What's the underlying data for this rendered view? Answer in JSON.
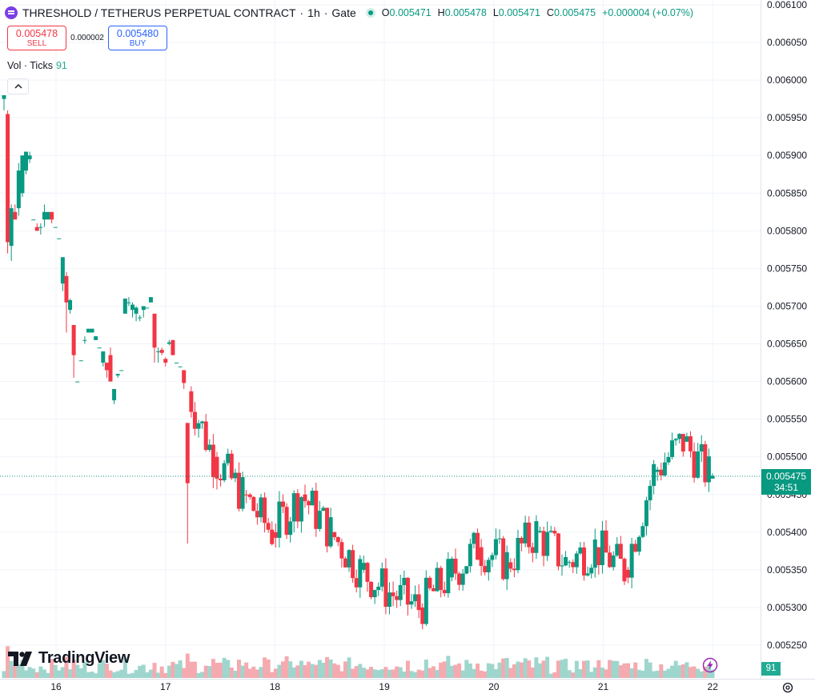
{
  "header": {
    "symbol_title": "THRESHOLD / TETHERUS PERPETUAL CONTRACT",
    "separator1": "·",
    "interval": "1h",
    "separator2": "·",
    "exchange": "Gate",
    "ohlc": {
      "o_label": "O",
      "o_value": "0.005471",
      "h_label": "H",
      "h_value": "0.005478",
      "l_label": "L",
      "l_value": "0.005471",
      "c_label": "C",
      "c_value": "0.005475",
      "change": "+0.000004 (+0.07%)"
    }
  },
  "trade": {
    "sell_price": "0.005478",
    "sell_label": "SELL",
    "spread": "0.000002",
    "buy_price": "0.005480",
    "buy_label": "BUY"
  },
  "volume_legend": {
    "label": "Vol · Ticks",
    "value": "91"
  },
  "current_price": {
    "price": "0.005475",
    "countdown": "34:51"
  },
  "volume_tag": "91",
  "brand": {
    "name": "TradingView"
  },
  "colors": {
    "up": "#089981",
    "down": "#f23645",
    "up_vol": "#9ed6cd",
    "down_vol": "#f5aab0",
    "grid": "#f0f3fa"
  },
  "chart_data": {
    "type": "candlestick",
    "y_axis_ticks": [
      "0.006100",
      "0.006050",
      "0.006000",
      "0.005950",
      "0.005900",
      "0.005850",
      "0.005800",
      "0.005750",
      "0.005700",
      "0.005650",
      "0.005600",
      "0.005550",
      "0.005500",
      "0.005450",
      "0.005400",
      "0.005350",
      "0.005300",
      "0.005250"
    ],
    "x_axis_ticks": [
      "16",
      "17",
      "18",
      "19",
      "20",
      "21",
      "22"
    ],
    "ylim": [
      0.00522,
      0.0061
    ],
    "x_day_start": 15.48,
    "candles": [
      {
        "o": 0.005975,
        "h": 0.00598,
        "l": 0.00596,
        "c": 0.00598
      },
      {
        "o": 0.005955,
        "h": 0.00596,
        "l": 0.00577,
        "c": 0.005785
      },
      {
        "o": 0.00578,
        "h": 0.005835,
        "l": 0.00576,
        "c": 0.00583
      },
      {
        "o": 0.005825,
        "h": 0.005835,
        "l": 0.005815,
        "c": 0.005815
      },
      {
        "o": 0.00583,
        "h": 0.00589,
        "l": 0.00582,
        "c": 0.00588
      },
      {
        "o": 0.00585,
        "h": 0.0059,
        "l": 0.005845,
        "c": 0.0059
      },
      {
        "o": 0.00588,
        "h": 0.005905,
        "l": 0.005875,
        "c": 0.005905
      },
      {
        "o": 0.005895,
        "h": 0.005905,
        "l": 0.00589,
        "c": 0.0059
      },
      {
        "o": 0.005815,
        "h": 0.005815,
        "l": 0.005815,
        "c": 0.005815
      },
      {
        "o": 0.005805,
        "h": 0.00581,
        "l": 0.0058,
        "c": 0.0058
      },
      {
        "o": 0.005805,
        "h": 0.00581,
        "l": 0.005795,
        "c": 0.005805
      },
      {
        "o": 0.005815,
        "h": 0.005835,
        "l": 0.005805,
        "c": 0.005825
      },
      {
        "o": 0.005815,
        "h": 0.005825,
        "l": 0.005815,
        "c": 0.005825
      },
      {
        "o": 0.005825,
        "h": 0.005825,
        "l": 0.00581,
        "c": 0.005815
      },
      {
        "o": 0.005805,
        "h": 0.005805,
        "l": 0.005805,
        "c": 0.005805
      },
      {
        "o": 0.00579,
        "h": 0.00579,
        "l": 0.00579,
        "c": 0.00579
      },
      {
        "o": 0.00573,
        "h": 0.005765,
        "l": 0.00572,
        "c": 0.005765
      },
      {
        "o": 0.00574,
        "h": 0.005745,
        "l": 0.005665,
        "c": 0.005705
      },
      {
        "o": 0.005695,
        "h": 0.00571,
        "l": 0.00569,
        "c": 0.005708
      },
      {
        "o": 0.005675,
        "h": 0.005675,
        "l": 0.005605,
        "c": 0.005635
      },
      {
        "o": 0.0056,
        "h": 0.0056,
        "l": 0.0056,
        "c": 0.0056
      },
      {
        "o": 0.005628,
        "h": 0.005628,
        "l": 0.005628,
        "c": 0.005628
      },
      {
        "o": 0.005655,
        "h": 0.00566,
        "l": 0.00565,
        "c": 0.005655
      },
      {
        "o": 0.005665,
        "h": 0.00567,
        "l": 0.005665,
        "c": 0.00567
      },
      {
        "o": 0.005665,
        "h": 0.00567,
        "l": 0.005665,
        "c": 0.00567
      },
      {
        "o": 0.005655,
        "h": 0.00566,
        "l": 0.005655,
        "c": 0.00566
      },
      {
        "o": 0.005645,
        "h": 0.005645,
        "l": 0.005645,
        "c": 0.005645
      },
      {
        "o": 0.005625,
        "h": 0.00564,
        "l": 0.00562,
        "c": 0.00564
      },
      {
        "o": 0.005625,
        "h": 0.005625,
        "l": 0.005605,
        "c": 0.005615
      },
      {
        "o": 0.005635,
        "h": 0.005645,
        "l": 0.0056,
        "c": 0.0056
      },
      {
        "o": 0.005575,
        "h": 0.00559,
        "l": 0.00557,
        "c": 0.00559
      },
      {
        "o": 0.005608,
        "h": 0.00561,
        "l": 0.005605,
        "c": 0.00561
      },
      {
        "o": 0.005615,
        "h": 0.005615,
        "l": 0.005615,
        "c": 0.005615
      },
      {
        "o": 0.00569,
        "h": 0.00571,
        "l": 0.00569,
        "c": 0.00571
      },
      {
        "o": 0.005705,
        "h": 0.005712,
        "l": 0.0057,
        "c": 0.005705
      },
      {
        "o": 0.005695,
        "h": 0.005705,
        "l": 0.005685,
        "c": 0.005702
      },
      {
        "o": 0.00569,
        "h": 0.0057,
        "l": 0.00568,
        "c": 0.005698
      },
      {
        "o": 0.005685,
        "h": 0.005688,
        "l": 0.00568,
        "c": 0.005685
      },
      {
        "o": 0.005695,
        "h": 0.0057,
        "l": 0.005685,
        "c": 0.0057
      },
      {
        "o": 0.005698,
        "h": 0.005698,
        "l": 0.005698,
        "c": 0.005698
      },
      {
        "o": 0.005705,
        "h": 0.005712,
        "l": 0.005705,
        "c": 0.005712
      },
      {
        "o": 0.00569,
        "h": 0.00569,
        "l": 0.005625,
        "c": 0.005645
      },
      {
        "o": 0.00564,
        "h": 0.005645,
        "l": 0.005625,
        "c": 0.00564
      },
      {
        "o": 0.005642,
        "h": 0.005645,
        "l": 0.005635,
        "c": 0.005638
      },
      {
        "o": 0.00563,
        "h": 0.005632,
        "l": 0.00562,
        "c": 0.005625
      },
      {
        "o": 0.00565,
        "h": 0.005655,
        "l": 0.005648,
        "c": 0.005652
      },
      {
        "o": 0.005655,
        "h": 0.005655,
        "l": 0.005635,
        "c": 0.005635
      },
      {
        "o": 0.005625,
        "h": 0.005625,
        "l": 0.005625,
        "c": 0.005625
      },
      {
        "o": 0.00562,
        "h": 0.00562,
        "l": 0.00562,
        "c": 0.00562
      },
      {
        "o": 0.005615,
        "h": 0.005615,
        "l": 0.00559,
        "c": 0.005598
      }
    ]
  }
}
